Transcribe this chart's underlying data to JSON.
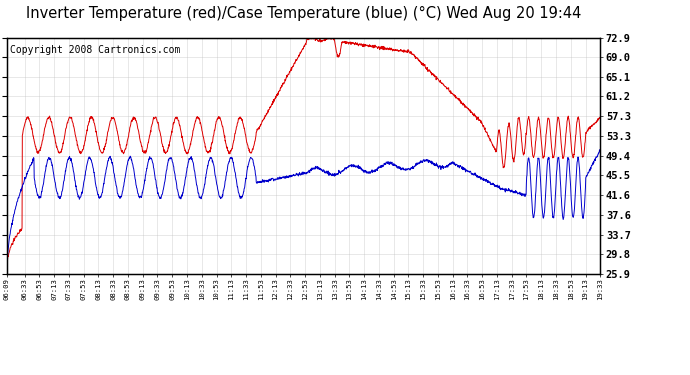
{
  "title": "Inverter Temperature (red)/Case Temperature (blue) (°C) Wed Aug 20 19:44",
  "copyright": "Copyright 2008 Cartronics.com",
  "ylabel_right": [
    "72.9",
    "69.0",
    "65.1",
    "61.2",
    "57.3",
    "53.3",
    "49.4",
    "45.5",
    "41.6",
    "37.6",
    "33.7",
    "29.8",
    "25.9"
  ],
  "ytick_values": [
    72.9,
    69.0,
    65.1,
    61.2,
    57.3,
    53.3,
    49.4,
    45.5,
    41.6,
    37.6,
    33.7,
    29.8,
    25.9
  ],
  "ymin": 25.9,
  "ymax": 72.9,
  "background_color": "#ffffff",
  "plot_bg_color": "#ffffff",
  "grid_color": "#bbbbbb",
  "red_color": "#dd0000",
  "blue_color": "#0000cc",
  "title_fontsize": 10.5,
  "copyright_fontsize": 7,
  "tick_times_str": [
    "06:09",
    "06:33",
    "06:53",
    "07:13",
    "07:33",
    "07:53",
    "08:13",
    "08:33",
    "08:53",
    "09:13",
    "09:33",
    "09:53",
    "10:13",
    "10:33",
    "10:53",
    "11:13",
    "11:33",
    "11:53",
    "12:13",
    "12:33",
    "12:53",
    "13:13",
    "13:33",
    "13:53",
    "14:13",
    "14:33",
    "14:53",
    "15:13",
    "15:33",
    "15:53",
    "16:13",
    "16:33",
    "16:53",
    "17:13",
    "17:33",
    "17:53",
    "18:13",
    "18:33",
    "18:53",
    "19:13",
    "19:33"
  ]
}
